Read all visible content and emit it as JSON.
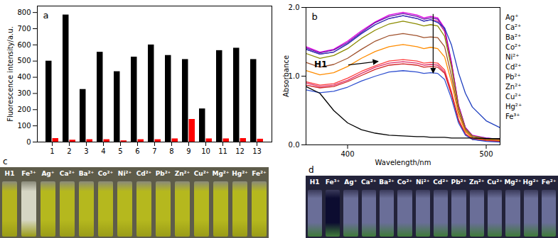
{
  "chart_data": [
    {
      "type": "bar",
      "panel_label": "a",
      "y_label": "Fluorescence intensity/a.u.",
      "categories": [
        1,
        2,
        3,
        4,
        5,
        6,
        7,
        8,
        9,
        10,
        11,
        12,
        13
      ],
      "series": [
        {
          "color": "#000000",
          "values": [
            500,
            785,
            325,
            555,
            435,
            525,
            600,
            535,
            510,
            205,
            565,
            580,
            510
          ]
        },
        {
          "color": "#ff0000",
          "values": [
            22,
            12,
            15,
            15,
            8,
            15,
            15,
            20,
            140,
            20,
            20,
            22,
            18
          ]
        }
      ],
      "ylim": [
        0,
        840
      ],
      "yticks": [
        0,
        100,
        200,
        300,
        400,
        500,
        600,
        700,
        800
      ],
      "grid": false
    },
    {
      "type": "line",
      "panel_label": "b",
      "x_label": "Wavelength/nm",
      "y_label": "Absorbance",
      "annotations": [
        {
          "text": "H1"
        }
      ],
      "legend": "right",
      "x": [
        370,
        380,
        390,
        400,
        410,
        420,
        430,
        440,
        450,
        455,
        460,
        465,
        470,
        475,
        480,
        485,
        490,
        500,
        510
      ],
      "series": [
        {
          "name": "H1",
          "color": "#e000e0",
          "values": [
            1.43,
            1.35,
            1.39,
            1.51,
            1.66,
            1.79,
            1.89,
            1.93,
            1.89,
            1.85,
            1.87,
            1.85,
            1.7,
            1.2,
            0.58,
            0.25,
            0.14,
            0.1,
            0.08
          ]
        },
        {
          "name": "Ag⁺",
          "color": "#6a0dad",
          "values": [
            1.41,
            1.34,
            1.38,
            1.49,
            1.64,
            1.78,
            1.87,
            1.91,
            1.87,
            1.83,
            1.85,
            1.83,
            1.68,
            1.18,
            0.57,
            0.25,
            0.13,
            0.1,
            0.08
          ]
        },
        {
          "name": "Ca²⁺",
          "color": "#c71585",
          "values": [
            1.39,
            1.32,
            1.35,
            1.47,
            1.62,
            1.75,
            1.84,
            1.88,
            1.84,
            1.8,
            1.82,
            1.8,
            1.65,
            1.17,
            0.56,
            0.24,
            0.13,
            0.09,
            0.08
          ]
        },
        {
          "name": "Ba²⁺",
          "color": "#8b8b00",
          "values": [
            1.33,
            1.26,
            1.3,
            1.4,
            1.55,
            1.67,
            1.76,
            1.8,
            1.76,
            1.73,
            1.75,
            1.73,
            1.58,
            1.12,
            0.54,
            0.23,
            0.13,
            0.09,
            0.07
          ]
        },
        {
          "name": "Co²⁺",
          "color": "#a0522d",
          "values": [
            1.2,
            1.13,
            1.17,
            1.26,
            1.39,
            1.51,
            1.59,
            1.62,
            1.59,
            1.56,
            1.57,
            1.56,
            1.43,
            1.0,
            0.49,
            0.21,
            0.11,
            0.08,
            0.06
          ]
        },
        {
          "name": "Ni²⁺",
          "color": "#ff8c00",
          "values": [
            1.08,
            1.02,
            1.05,
            1.14,
            1.26,
            1.36,
            1.43,
            1.46,
            1.43,
            1.4,
            1.42,
            1.4,
            1.28,
            0.91,
            0.44,
            0.19,
            0.1,
            0.07,
            0.06
          ]
        },
        {
          "name": "Cd²⁺",
          "color": "#ff4040",
          "values": [
            0.92,
            0.87,
            0.89,
            0.97,
            1.07,
            1.15,
            1.22,
            1.24,
            1.22,
            1.19,
            1.2,
            1.19,
            1.09,
            0.77,
            0.37,
            0.16,
            0.09,
            0.06,
            0.05
          ]
        },
        {
          "name": "Pb²⁺",
          "color": "#e0306a",
          "values": [
            0.9,
            0.85,
            0.87,
            0.94,
            1.04,
            1.13,
            1.19,
            1.21,
            1.19,
            1.16,
            1.17,
            1.16,
            1.06,
            0.75,
            0.36,
            0.16,
            0.08,
            0.06,
            0.05
          ]
        },
        {
          "name": "Zn²⁺",
          "color": "#d02020",
          "values": [
            0.87,
            0.83,
            0.85,
            0.92,
            1.01,
            1.1,
            1.16,
            1.18,
            1.16,
            1.13,
            1.14,
            1.13,
            1.04,
            0.73,
            0.35,
            0.15,
            0.08,
            0.06,
            0.05
          ]
        },
        {
          "name": "Cu²⁺",
          "color": "#1f3fbf",
          "values": [
            1.39,
            1.32,
            1.35,
            1.47,
            1.62,
            1.75,
            1.84,
            1.88,
            1.84,
            1.8,
            1.82,
            1.78,
            1.7,
            1.45,
            1.05,
            0.75,
            0.55,
            0.35,
            0.25
          ]
        },
        {
          "name": "Hg²⁺",
          "color": "#3050d0",
          "values": [
            0.8,
            0.76,
            0.78,
            0.84,
            0.93,
            1.0,
            1.06,
            1.08,
            1.06,
            1.04,
            1.05,
            1.04,
            0.95,
            0.67,
            0.32,
            0.14,
            0.08,
            0.05,
            0.04
          ]
        },
        {
          "name": "Fe³⁺",
          "color": "#000000",
          "values": [
            0.85,
            0.75,
            0.5,
            0.32,
            0.22,
            0.17,
            0.14,
            0.13,
            0.12,
            0.12,
            0.11,
            0.11,
            0.11,
            0.1,
            0.1,
            0.1,
            0.1,
            0.09,
            0.09
          ]
        }
      ],
      "xlim": [
        370,
        510
      ],
      "xticks": [
        400,
        500
      ],
      "ylim": [
        0,
        2
      ],
      "yticks": [
        0,
        1,
        2
      ],
      "grid": false
    }
  ],
  "photos": [
    {
      "panel_label": "c",
      "labels": [
        "H1",
        "Fe³⁺",
        "Ag⁺",
        "Ca²⁺",
        "Ba²⁺",
        "Co²⁺",
        "Ni²⁺",
        "Cd²⁺",
        "Pb²⁺",
        "Zn²⁺",
        "Cu²⁺",
        "Mg²⁺",
        "Hg²⁺",
        "Fe²⁺"
      ],
      "colors": [
        "#b4b41e",
        "#d6d6c4",
        "#b5b81e",
        "#b5b81e",
        "#b5b81e",
        "#b5b81e",
        "#b5b81e",
        "#b5b81e",
        "#b5b81e",
        "#b5b81e",
        "#b5b81e",
        "#b5b81e",
        "#b5b81e",
        "#b5b81e"
      ]
    },
    {
      "panel_label": "d",
      "labels": [
        "H1",
        "Fe³⁺",
        "Ag⁺",
        "Ca²⁺",
        "Ba²⁺",
        "Co²⁺",
        "Ni²⁺",
        "Cd²⁺",
        "Pb²⁺",
        "Zn²⁺",
        "Cu²⁺",
        "Mg²⁺",
        "Hg²⁺",
        "Fe²⁺"
      ],
      "colors": [
        "#6a6e98",
        "#0c0c30",
        "#6a6e98",
        "#6a6e98",
        "#6a6e98",
        "#6a6e98",
        "#6a6e98",
        "#6a6e98",
        "#6a6e98",
        "#6a6e98",
        "#6a6e98",
        "#6a6e98",
        "#6a6e98",
        "#6a6e98"
      ]
    }
  ]
}
